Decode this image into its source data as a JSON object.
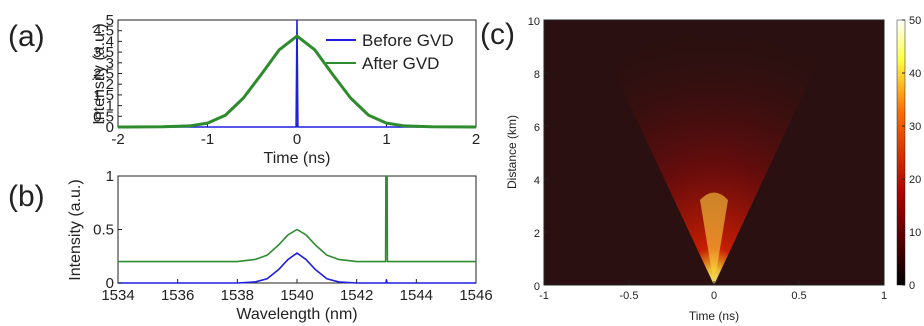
{
  "panels": {
    "a": "(a)",
    "b": "(b)",
    "c": "(c)"
  },
  "colors": {
    "series1": "#1f1fe0",
    "series2": "#2e8b2e"
  },
  "chart_data": [
    {
      "type": "line",
      "xlabel": "Time (ns)",
      "ylabel": "Intensity (a.u.)",
      "xlim": [
        -2,
        2
      ],
      "ylim": [
        0,
        5
      ],
      "xticks": [
        "-2",
        "-1",
        "0",
        "1",
        "2"
      ],
      "yticks": [
        "0",
        "0.5",
        "1",
        "1.5",
        "2",
        "2.5",
        "3",
        "3.5",
        "4",
        "4.5",
        "5"
      ],
      "legend_position": "top-right",
      "series": [
        {
          "name": "Before GVD",
          "color": "#1f1fe0",
          "x": [
            -2,
            -0.01,
            0,
            0.01,
            2
          ],
          "y": [
            0,
            0,
            5,
            0,
            0
          ]
        },
        {
          "name": "After GVD",
          "color": "#2e8b2e",
          "x": [
            -2,
            -1.5,
            -1.2,
            -1,
            -0.8,
            -0.6,
            -0.4,
            -0.2,
            0,
            0.2,
            0.4,
            0.6,
            0.8,
            1,
            1.2,
            1.5,
            2
          ],
          "y": [
            0,
            0.01,
            0.05,
            0.18,
            0.55,
            1.35,
            2.45,
            3.6,
            4.25,
            3.6,
            2.45,
            1.35,
            0.55,
            0.18,
            0.05,
            0.01,
            0
          ]
        }
      ]
    },
    {
      "type": "line",
      "xlabel": "Wavelength (nm)",
      "ylabel": "Intensity (a.u.)",
      "xlim": [
        1534,
        1546
      ],
      "ylim": [
        0,
        1
      ],
      "xticks": [
        "1534",
        "1536",
        "1538",
        "1540",
        "1542",
        "1544",
        "1546"
      ],
      "yticks": [
        "0",
        "0.5",
        "1"
      ],
      "series": [
        {
          "color": "#1f1fe0",
          "x": [
            1534,
            1538,
            1538.6,
            1539,
            1539.4,
            1539.7,
            1540,
            1540.3,
            1540.6,
            1541,
            1541.4,
            1542,
            1542.98,
            1543,
            1543.02,
            1546
          ],
          "y": [
            0,
            0,
            0.01,
            0.04,
            0.13,
            0.22,
            0.28,
            0.22,
            0.13,
            0.04,
            0.01,
            0,
            0,
            0.03,
            0,
            0
          ]
        },
        {
          "color": "#2e8b2e",
          "x": [
            1534,
            1538,
            1538.6,
            1539,
            1539.4,
            1539.7,
            1540,
            1540.3,
            1540.6,
            1541,
            1541.4,
            1542,
            1542.97,
            1542.98,
            1543.02,
            1543.03,
            1546
          ],
          "y": [
            0.2,
            0.2,
            0.22,
            0.26,
            0.36,
            0.45,
            0.5,
            0.45,
            0.36,
            0.26,
            0.22,
            0.2,
            0.2,
            1,
            1,
            0.2,
            0.2
          ]
        }
      ]
    },
    {
      "type": "heatmap",
      "xlabel": "Time (ns)",
      "ylabel": "Distance (km)",
      "xlim": [
        -1,
        1
      ],
      "ylim": [
        0,
        10
      ],
      "xticks": [
        "-1",
        "-0.5",
        "0",
        "0.5",
        "1"
      ],
      "yticks": [
        "0",
        "2",
        "4",
        "6",
        "8",
        "10"
      ],
      "colorbar_ticks": [
        "0",
        "10",
        "20",
        "30",
        "40",
        "50"
      ],
      "colorbar_range": [
        0,
        50
      ],
      "colormap": "hot",
      "description_values": {
        "peak_time_ns": 0,
        "peak_distance_km": 0,
        "peak_value": 50
      }
    }
  ]
}
